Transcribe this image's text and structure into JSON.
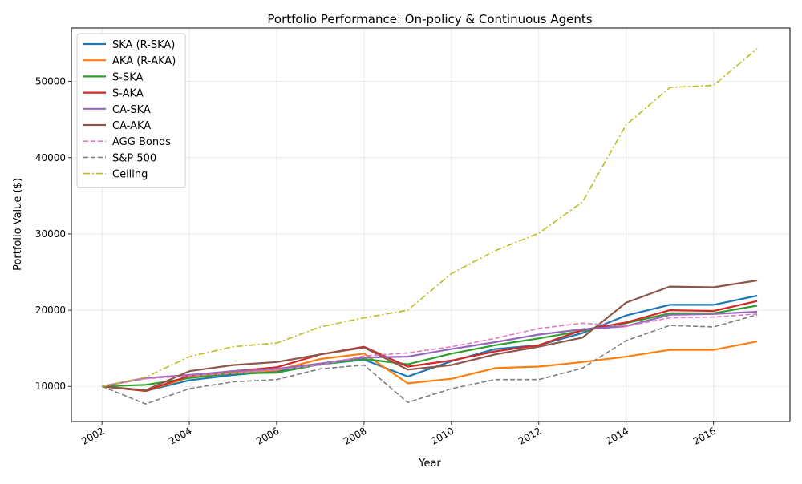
{
  "chart_data": {
    "type": "line",
    "title": "Portfolio Performance: On-policy & Continuous Agents",
    "xlabel": "Year",
    "ylabel": "Portfolio Value ($)",
    "xlim": [
      2001.3,
      2017.75
    ],
    "ylim": [
      5400,
      57000
    ],
    "x": [
      2002,
      2003,
      2004,
      2005,
      2006,
      2007,
      2008,
      2009,
      2010,
      2011,
      2012,
      2013,
      2014,
      2015,
      2016,
      2017
    ],
    "x_ticks": [
      2002,
      2004,
      2006,
      2008,
      2010,
      2012,
      2014,
      2016
    ],
    "x_tick_labels": [
      "2002",
      "2004",
      "2006",
      "2008",
      "2010",
      "2012",
      "2014",
      "2016"
    ],
    "y_ticks": [
      10000,
      20000,
      30000,
      40000,
      50000
    ],
    "y_tick_labels": [
      "10000",
      "20000",
      "30000",
      "40000",
      "50000"
    ],
    "grid": true,
    "legend_position": "upper-left",
    "series": [
      {
        "name": "SKA (R-SKA)",
        "color": "#1f77b4",
        "style": "solid",
        "width": 2.2,
        "values": [
          10000,
          9400,
          10800,
          11500,
          12000,
          12900,
          13500,
          11300,
          13300,
          14900,
          15400,
          17000,
          19300,
          20700,
          20700,
          21900
        ]
      },
      {
        "name": "AKA (R-AKA)",
        "color": "#ff7f0e",
        "style": "solid",
        "width": 2.2,
        "values": [
          10000,
          9400,
          11200,
          11800,
          12100,
          13600,
          14300,
          10400,
          11000,
          12400,
          12600,
          13200,
          13900,
          14800,
          14800,
          15900
        ]
      },
      {
        "name": "S-SKA",
        "color": "#2ca02c",
        "style": "solid",
        "width": 2.2,
        "values": [
          10000,
          10200,
          11100,
          11700,
          11800,
          12900,
          13600,
          12900,
          14300,
          15400,
          16300,
          17300,
          18300,
          19600,
          19600,
          20600
        ]
      },
      {
        "name": "S-AKA",
        "color": "#d62728",
        "style": "solid",
        "width": 2.2,
        "values": [
          10000,
          9400,
          11400,
          12000,
          12500,
          14200,
          15200,
          12600,
          13400,
          14600,
          15400,
          17400,
          18400,
          20000,
          19900,
          21200
        ]
      },
      {
        "name": "CA-SKA",
        "color": "#9467bd",
        "style": "solid",
        "width": 2.2,
        "values": [
          10000,
          11100,
          11500,
          12000,
          12300,
          13000,
          13800,
          13900,
          14900,
          15800,
          16800,
          17500,
          17900,
          19400,
          19500,
          19800
        ]
      },
      {
        "name": "CA-AKA",
        "color": "#8c564b",
        "style": "solid",
        "width": 2.2,
        "values": [
          10000,
          9500,
          12000,
          12800,
          13200,
          14200,
          15100,
          12200,
          12800,
          14200,
          15200,
          16400,
          21000,
          23100,
          23000,
          23900
        ]
      },
      {
        "name": "AGG Bonds",
        "color": "#e377c2",
        "style": "dashed",
        "width": 1.6,
        "values": [
          10000,
          11000,
          11400,
          11700,
          12200,
          12800,
          14000,
          14400,
          15200,
          16300,
          17600,
          18300,
          17900,
          19000,
          19100,
          19500
        ]
      },
      {
        "name": "S&P 500",
        "color": "#7f7f7f",
        "style": "dashed",
        "width": 1.6,
        "values": [
          10000,
          7700,
          9700,
          10600,
          10900,
          12300,
          12800,
          7900,
          9700,
          10900,
          10900,
          12400,
          16000,
          18000,
          17800,
          19400
        ]
      },
      {
        "name": "Ceiling",
        "color": "#bcbd22",
        "style": "dashdot",
        "width": 1.6,
        "values": [
          10000,
          11200,
          13900,
          15200,
          15700,
          17800,
          19000,
          20000,
          24800,
          27800,
          30100,
          34200,
          44300,
          49200,
          49500,
          54300
        ]
      }
    ]
  }
}
